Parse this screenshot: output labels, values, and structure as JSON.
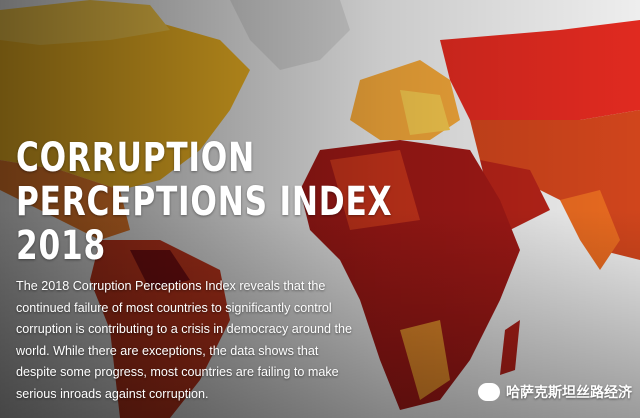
{
  "title": {
    "lines": [
      "CORRUPTION",
      "PERCEPTIONS INDEX",
      "2018"
    ]
  },
  "body": {
    "lines": [
      "The 2018 Corruption Perceptions Index reveals that the",
      "continued failure of most countries to significantly control",
      "corruption is contributing to a crisis in democracy around the",
      "world. While there are exceptions, the data shows that",
      "despite some progress, most countries are failing to make",
      "serious inroads against corruption."
    ]
  },
  "watermark": {
    "text": "哈萨克斯坦丝路经济"
  }
}
